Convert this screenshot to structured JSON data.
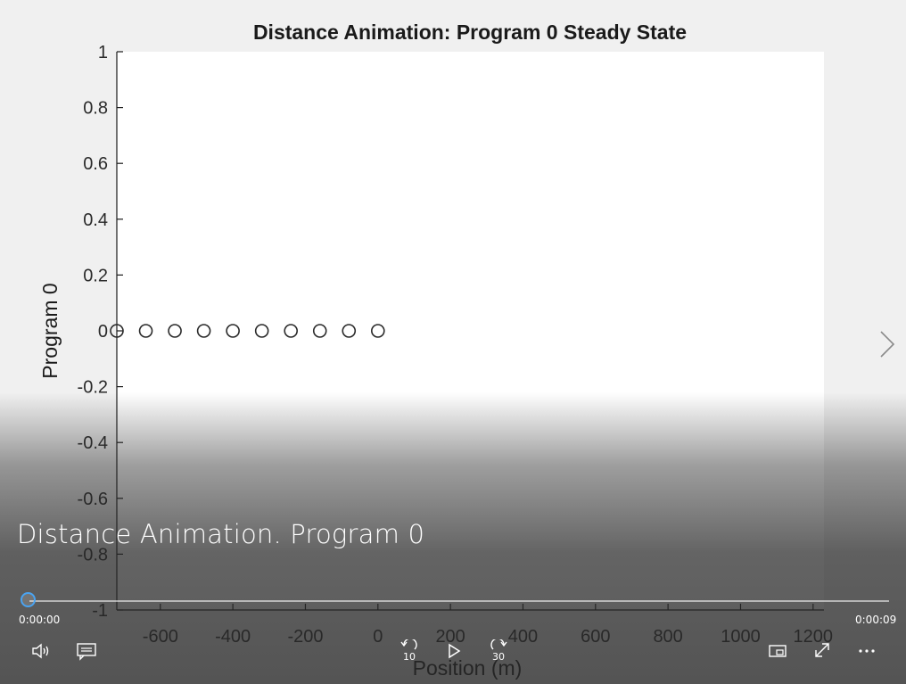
{
  "player": {
    "title": "Distance Animation. Program 0",
    "current_time": "0:00:00",
    "total_time": "0:00:09",
    "progress": 0.0,
    "skip_back_seconds": "10",
    "skip_forward_seconds": "30",
    "icons": {
      "volume": "volume-icon",
      "captions": "captions-icon",
      "skip_back": "skip-back-icon",
      "play": "play-icon",
      "skip_forward": "skip-forward-icon",
      "mini_view": "mini-view-icon",
      "fullscreen": "fullscreen-icon",
      "more": "more-options-icon",
      "next": "next-icon"
    },
    "accent_color": "#4aa3f0"
  },
  "chart_data": {
    "type": "scatter",
    "title": "Distance Animation: Program 0 Steady State",
    "xlabel": "Position (m)",
    "ylabel": "Program 0",
    "xlim": [
      -720,
      1230
    ],
    "ylim": [
      -1,
      1
    ],
    "xticks": [
      -600,
      -400,
      -200,
      0,
      200,
      400,
      600,
      800,
      1000,
      1200
    ],
    "xtick_labels": [
      "-600",
      "-400",
      "-200",
      "0",
      "200",
      "400",
      "600",
      "800",
      "1000",
      "1200"
    ],
    "yticks": [
      1,
      0.8,
      0.6,
      0.4,
      0.2,
      0,
      -0.2,
      -0.4,
      -0.6,
      -0.8,
      -1
    ],
    "ytick_labels": [
      "1",
      "0.8",
      "0.6",
      "0.4",
      "0.2",
      "0",
      "-0.2",
      "-0.4",
      "-0.6",
      "-0.8",
      "-1"
    ],
    "grid": false,
    "marker": "circle-open",
    "series": [
      {
        "x": [
          -720,
          -640,
          -560,
          -480,
          -400,
          -320,
          -240,
          -160,
          -80,
          0
        ],
        "y": [
          0,
          0,
          0,
          0,
          0,
          0,
          0,
          0,
          0,
          0
        ]
      }
    ]
  }
}
